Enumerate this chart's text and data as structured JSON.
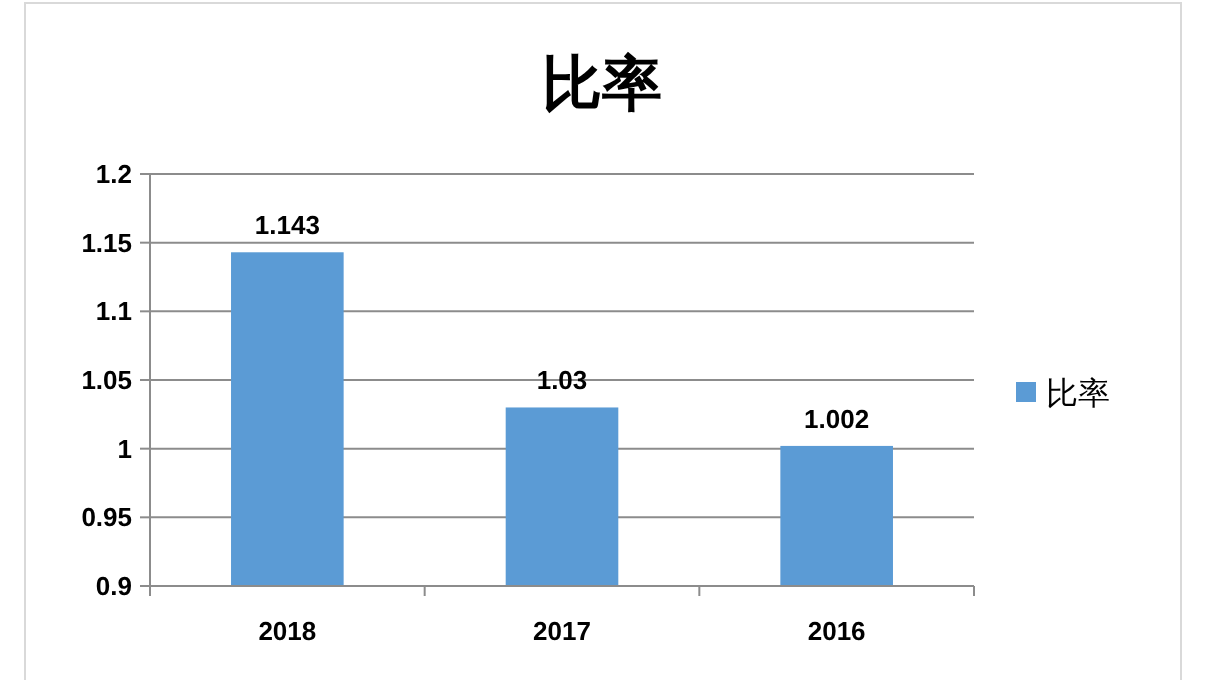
{
  "chart_data": {
    "type": "bar",
    "title": "比率",
    "categories": [
      "2018",
      "2017",
      "2016"
    ],
    "series": [
      {
        "name": "比率",
        "color": "#5b9bd5",
        "values": [
          1.143,
          1.03,
          1.002
        ]
      }
    ],
    "ylim": [
      0.9,
      1.2
    ],
    "yticks": [
      0.9,
      0.95,
      1,
      1.05,
      1.1,
      1.15,
      1.2
    ],
    "grid": "y",
    "legend": "right",
    "data_labels": true
  }
}
